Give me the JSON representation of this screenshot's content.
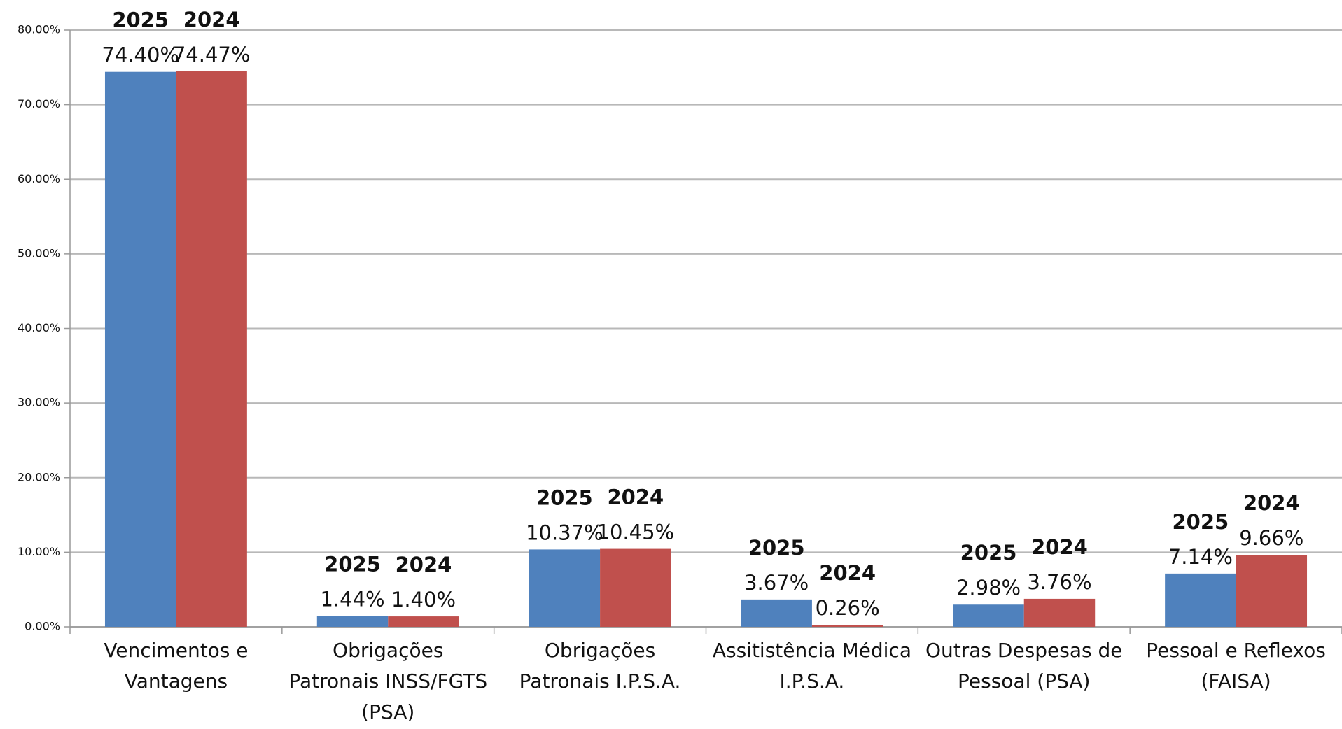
{
  "chart_data": {
    "type": "bar",
    "categories": [
      "Vencimentos e Vantagens",
      "Obrigações Patronais INSS/FGTS (PSA)",
      "Obrigações Patronais I.P.S.A.",
      "Assitistência Médica I.P.S.A.",
      "Outras Despesas de Pessoal (PSA)",
      "Pessoal e Reflexos (FAISA)"
    ],
    "series": [
      {
        "name": "2025",
        "color": "#4f81bd",
        "values": [
          74.4,
          1.44,
          10.37,
          3.67,
          2.98,
          7.14
        ],
        "value_labels": [
          "74.40%",
          "1.44%",
          "10.37%",
          "3.67%",
          "2.98%",
          "7.14%"
        ]
      },
      {
        "name": "2024",
        "color": "#c0504d",
        "values": [
          74.47,
          1.4,
          10.45,
          0.26,
          3.76,
          9.66
        ],
        "value_labels": [
          "74.47%",
          "1.40%",
          "10.45%",
          "0.26%",
          "3.76%",
          "9.66%"
        ]
      }
    ],
    "ylim": [
      0,
      80
    ],
    "yticks": [
      {
        "value": 0,
        "label": "0.00%"
      },
      {
        "value": 10,
        "label": "10.00%"
      },
      {
        "value": 20,
        "label": "20.00%"
      },
      {
        "value": 30,
        "label": "30.00%"
      },
      {
        "value": 40,
        "label": "40.00%"
      },
      {
        "value": 50,
        "label": "50.00%"
      },
      {
        "value": 60,
        "label": "60.00%"
      },
      {
        "value": 70,
        "label": "70.00%"
      },
      {
        "value": 80,
        "label": "80.00%"
      }
    ],
    "grid": true
  }
}
